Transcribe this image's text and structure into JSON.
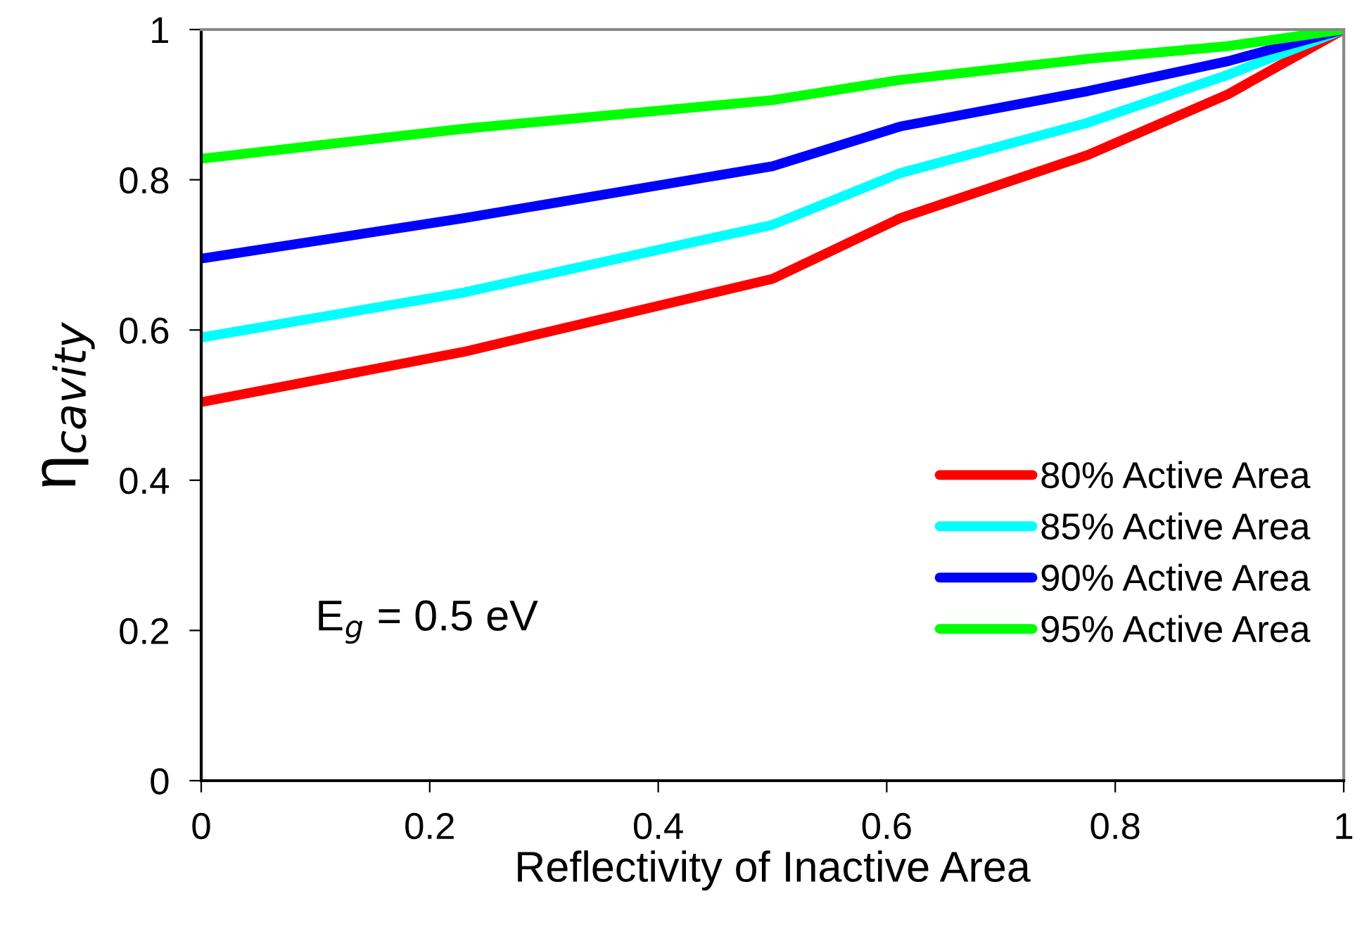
{
  "chart_data": {
    "type": "line",
    "xlabel": "Reflectivity of Inactive Area",
    "ylabel": "η$_{cavity}$",
    "x": [
      0,
      0.23,
      0.5,
      0.612,
      0.776,
      0.899,
      1
    ],
    "series": [
      {
        "name": "80% Active Area",
        "color": "#ff0000",
        "values": [
          0.504,
          0.571,
          0.668,
          0.749,
          0.833,
          0.914,
          1
        ]
      },
      {
        "name": "85% Active Area",
        "color": "#00ffff",
        "values": [
          0.59,
          0.65,
          0.74,
          0.809,
          0.876,
          0.94,
          1
        ]
      },
      {
        "name": "90% Active Area",
        "color": "#0000ff",
        "values": [
          0.695,
          0.749,
          0.818,
          0.871,
          0.918,
          0.958,
          1
        ]
      },
      {
        "name": "95% Active Area",
        "color": "#00ff00",
        "values": [
          0.828,
          0.868,
          0.906,
          0.933,
          0.961,
          0.978,
          1
        ]
      }
    ],
    "xlim": [
      0,
      1
    ],
    "xticks": [
      0,
      0.2,
      0.4,
      0.6,
      0.8,
      1
    ],
    "ylim": [
      0,
      1
    ],
    "yticks": [
      0,
      0.2,
      0.4,
      0.6,
      0.8,
      1
    ],
    "annotations": [
      "E$_{g}$ = 0.5 eV"
    ],
    "grid": false,
    "legend": "right",
    "marker": "none",
    "line_style": "solid"
  }
}
